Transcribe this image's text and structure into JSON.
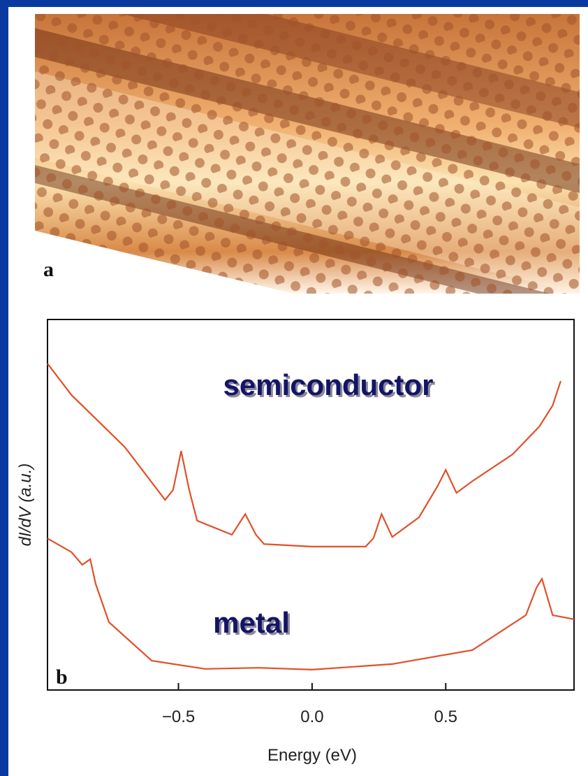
{
  "chart_data": {
    "type": "line",
    "panel_a_label": "a",
    "panel_b_label": "b",
    "xlabel": "Energy (eV)",
    "ylabel": "dI/dV (a.u.)",
    "xlim": [
      -0.99,
      0.98
    ],
    "ylim": [
      0,
      100
    ],
    "xticks": [
      {
        "value": -0.5,
        "label": "−0.5"
      },
      {
        "value": 0,
        "label": "0.0"
      },
      0.5
    ],
    "grid": false,
    "series": [
      {
        "name": "semiconductor",
        "color": "#e0502a",
        "x": [
          -0.99,
          -0.9,
          -0.7,
          -0.55,
          -0.52,
          -0.49,
          -0.46,
          -0.43,
          -0.3,
          -0.25,
          -0.21,
          -0.18,
          0.0,
          0.2,
          0.23,
          0.26,
          0.3,
          0.4,
          0.47,
          0.5,
          0.54,
          0.6,
          0.75,
          0.85,
          0.9,
          0.93
        ],
        "values": [
          88.1,
          79.6,
          65.5,
          51.3,
          54,
          64.5,
          54,
          45.7,
          41.9,
          47.5,
          41.9,
          39.4,
          38.7,
          38.7,
          41,
          47.5,
          41.3,
          46.6,
          55.1,
          59.4,
          53.2,
          56.4,
          63.6,
          71.1,
          76.8,
          83.4
        ]
      },
      {
        "name": "metal",
        "color": "#e0502a",
        "x": [
          -0.99,
          -0.9,
          -0.86,
          -0.83,
          -0.81,
          -0.76,
          -0.6,
          -0.4,
          -0.2,
          0.0,
          0.3,
          0.6,
          0.8,
          0.84,
          0.86,
          0.9,
          0.98
        ],
        "values": [
          40.9,
          37.2,
          33.8,
          35.3,
          28.7,
          18.3,
          7.9,
          5.7,
          6,
          5.5,
          7,
          10.8,
          20.2,
          27.7,
          30,
          20.2,
          19.1
        ]
      }
    ]
  }
}
